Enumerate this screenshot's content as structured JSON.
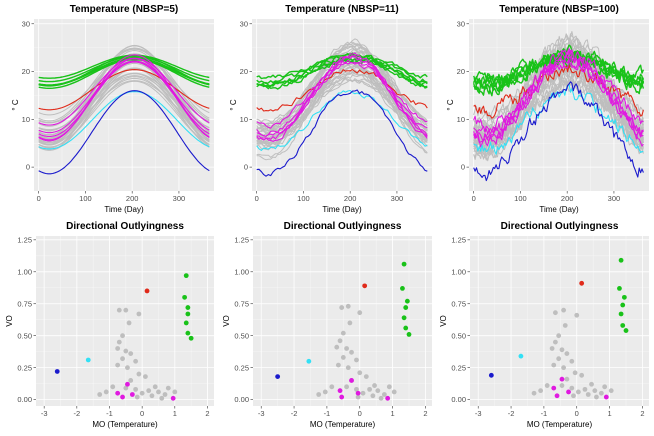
{
  "colors": {
    "panel_bg": "#ebebeb",
    "grid_major": "#ffffff",
    "grey_curve": "#bebebe",
    "green": "#19c219",
    "red": "#e02a1a",
    "magenta": "#e01ae0",
    "cyan": "#33e0f5",
    "blue": "#1a1acc"
  },
  "chart_data": [
    {
      "type": "line",
      "title": "Temperature (NBSP=5)",
      "xlabel": "Time (Day)",
      "ylabel": "° C",
      "xlim": [
        -10,
        375
      ],
      "ylim": [
        -5,
        31
      ],
      "xticks": [
        0,
        100,
        200,
        300
      ],
      "yticks": [
        0,
        10,
        20,
        30
      ],
      "noise": 0,
      "grid": true,
      "series": [
        {
          "color": "green",
          "mean": 20,
          "amp": 2.8
        },
        {
          "color": "green",
          "mean": 20.5,
          "amp": 2.6
        },
        {
          "color": "green",
          "mean": 19.5,
          "amp": 3.0
        },
        {
          "color": "green",
          "mean": 21,
          "amp": 2.4
        },
        {
          "color": "green",
          "mean": 20.2,
          "amp": 3.2
        },
        {
          "color": "green",
          "mean": 19.8,
          "amp": 2.7
        },
        {
          "color": "red",
          "mean": 16.2,
          "amp": 4.2
        },
        {
          "color": "magenta",
          "mean": 14.7,
          "amp": 7.5
        },
        {
          "color": "magenta",
          "mean": 14.2,
          "amp": 8.5
        },
        {
          "color": "magenta",
          "mean": 14.2,
          "amp": 7.8
        },
        {
          "color": "magenta",
          "mean": 15.8,
          "amp": 7
        },
        {
          "color": "magenta",
          "mean": 14.5,
          "amp": 9
        },
        {
          "color": "cyan",
          "mean": 9.8,
          "amp": 6
        },
        {
          "color": "blue",
          "mean": 7.3,
          "amp": 8.7
        }
      ]
    },
    {
      "type": "line",
      "title": "Temperature (NBSP=11)",
      "xlabel": "Time (Day)",
      "ylabel": "° C",
      "xlim": [
        -10,
        375
      ],
      "ylim": [
        -5,
        31
      ],
      "xticks": [
        0,
        100,
        200,
        300
      ],
      "yticks": [
        0,
        10,
        20,
        30
      ],
      "noise": 0.6,
      "grid": true,
      "series": [
        {
          "color": "green",
          "mean": 20,
          "amp": 2.8
        },
        {
          "color": "green",
          "mean": 20.5,
          "amp": 2.6
        },
        {
          "color": "green",
          "mean": 19.5,
          "amp": 3.0
        },
        {
          "color": "green",
          "mean": 21,
          "amp": 2.4
        },
        {
          "color": "green",
          "mean": 20.2,
          "amp": 3.2
        },
        {
          "color": "green",
          "mean": 19.8,
          "amp": 2.7
        },
        {
          "color": "red",
          "mean": 16.2,
          "amp": 4.2
        },
        {
          "color": "magenta",
          "mean": 14.7,
          "amp": 7.5
        },
        {
          "color": "magenta",
          "mean": 14.2,
          "amp": 8.5
        },
        {
          "color": "magenta",
          "mean": 14.2,
          "amp": 7.8
        },
        {
          "color": "magenta",
          "mean": 15.8,
          "amp": 7
        },
        {
          "color": "magenta",
          "mean": 14.5,
          "amp": 9
        },
        {
          "color": "cyan",
          "mean": 9.8,
          "amp": 6
        },
        {
          "color": "blue",
          "mean": 7.3,
          "amp": 8.7
        }
      ]
    },
    {
      "type": "line",
      "title": "Temperature (NBSP=100)",
      "xlabel": "Time (Day)",
      "ylabel": "° C",
      "xlim": [
        -10,
        375
      ],
      "ylim": [
        -5,
        31
      ],
      "xticks": [
        0,
        100,
        200,
        300
      ],
      "yticks": [
        0,
        10,
        20,
        30
      ],
      "noise": 1.6,
      "grid": true,
      "series": [
        {
          "color": "green",
          "mean": 20,
          "amp": 2.8
        },
        {
          "color": "green",
          "mean": 20.5,
          "amp": 2.6
        },
        {
          "color": "green",
          "mean": 19.5,
          "amp": 3.0
        },
        {
          "color": "green",
          "mean": 21,
          "amp": 2.4
        },
        {
          "color": "green",
          "mean": 20.2,
          "amp": 3.2
        },
        {
          "color": "green",
          "mean": 19.8,
          "amp": 2.7
        },
        {
          "color": "red",
          "mean": 16.2,
          "amp": 4.2
        },
        {
          "color": "magenta",
          "mean": 14.7,
          "amp": 7.5
        },
        {
          "color": "magenta",
          "mean": 14.2,
          "amp": 8.5
        },
        {
          "color": "magenta",
          "mean": 14.2,
          "amp": 7.8
        },
        {
          "color": "magenta",
          "mean": 15.8,
          "amp": 7
        },
        {
          "color": "magenta",
          "mean": 14.5,
          "amp": 9
        },
        {
          "color": "cyan",
          "mean": 9.8,
          "amp": 6
        },
        {
          "color": "blue",
          "mean": 7.3,
          "amp": 8.7
        }
      ]
    },
    {
      "type": "scatter",
      "title": "Directional Outlyingness",
      "xlabel": "MO (Temperature)",
      "ylabel": "VO",
      "xlim": [
        -3.25,
        2.2
      ],
      "ylim": [
        -0.05,
        1.28
      ],
      "xticks": [
        -3,
        -2,
        -1,
        0,
        1,
        2
      ],
      "yticks": [
        0.0,
        0.25,
        0.5,
        0.75,
        1.0,
        1.25
      ],
      "ytick_labels": [
        "0.00",
        "0.25",
        "0.50",
        "0.75",
        "1.00",
        "1.25"
      ],
      "grid": true,
      "points": [
        {
          "x": -2.6,
          "y": 0.22,
          "color": "blue"
        },
        {
          "x": -1.65,
          "y": 0.31,
          "color": "cyan"
        },
        {
          "x": 0.15,
          "y": 0.85,
          "color": "red"
        },
        {
          "x": 1.35,
          "y": 0.97,
          "color": "green"
        },
        {
          "x": 1.3,
          "y": 0.8,
          "color": "green"
        },
        {
          "x": 1.4,
          "y": 0.72,
          "color": "green"
        },
        {
          "x": 1.4,
          "y": 0.67,
          "color": "green"
        },
        {
          "x": 1.35,
          "y": 0.6,
          "color": "green"
        },
        {
          "x": 1.4,
          "y": 0.52,
          "color": "green"
        },
        {
          "x": 1.5,
          "y": 0.48,
          "color": "green"
        },
        {
          "x": -0.75,
          "y": 0.05,
          "color": "magenta"
        },
        {
          "x": -0.45,
          "y": 0.12,
          "color": "magenta"
        },
        {
          "x": -0.3,
          "y": 0.04,
          "color": "magenta"
        },
        {
          "x": -0.6,
          "y": 0.02,
          "color": "magenta"
        },
        {
          "x": 0.95,
          "y": 0.01,
          "color": "magenta"
        },
        {
          "x": -0.7,
          "y": 0.7,
          "color": "grey"
        },
        {
          "x": -0.5,
          "y": 0.7,
          "color": "grey"
        },
        {
          "x": -0.1,
          "y": 0.67,
          "color": "grey"
        },
        {
          "x": -0.4,
          "y": 0.6,
          "color": "grey"
        },
        {
          "x": -0.6,
          "y": 0.5,
          "color": "grey"
        },
        {
          "x": -0.7,
          "y": 0.45,
          "color": "grey"
        },
        {
          "x": -0.75,
          "y": 0.4,
          "color": "grey"
        },
        {
          "x": -0.5,
          "y": 0.38,
          "color": "grey"
        },
        {
          "x": -0.35,
          "y": 0.36,
          "color": "grey"
        },
        {
          "x": -0.6,
          "y": 0.32,
          "color": "grey"
        },
        {
          "x": -0.2,
          "y": 0.3,
          "color": "grey"
        },
        {
          "x": -0.75,
          "y": 0.27,
          "color": "grey"
        },
        {
          "x": -0.45,
          "y": 0.25,
          "color": "grey"
        },
        {
          "x": -0.1,
          "y": 0.2,
          "color": "grey"
        },
        {
          "x": 0.1,
          "y": 0.18,
          "color": "grey"
        },
        {
          "x": -0.35,
          "y": 0.15,
          "color": "grey"
        },
        {
          "x": -0.9,
          "y": 0.1,
          "color": "grey"
        },
        {
          "x": -1.1,
          "y": 0.06,
          "color": "grey"
        },
        {
          "x": -1.3,
          "y": 0.04,
          "color": "grey"
        },
        {
          "x": -0.2,
          "y": 0.08,
          "color": "grey"
        },
        {
          "x": 0.0,
          "y": 0.05,
          "color": "grey"
        },
        {
          "x": 0.2,
          "y": 0.07,
          "color": "grey"
        },
        {
          "x": 0.3,
          "y": 0.03,
          "color": "grey"
        },
        {
          "x": 0.5,
          "y": 0.06,
          "color": "grey"
        },
        {
          "x": 0.7,
          "y": 0.04,
          "color": "grey"
        },
        {
          "x": 0.8,
          "y": 0.09,
          "color": "grey"
        },
        {
          "x": 1.0,
          "y": 0.06,
          "color": "grey"
        },
        {
          "x": 0.4,
          "y": 0.1,
          "color": "grey"
        },
        {
          "x": -0.15,
          "y": 0.02,
          "color": "grey"
        },
        {
          "x": 0.6,
          "y": 0.01,
          "color": "grey"
        },
        {
          "x": -0.5,
          "y": 0.09,
          "color": "grey"
        }
      ]
    },
    {
      "type": "scatter",
      "title": "Directional Outlyingness",
      "xlabel": "MO (Temperature)",
      "ylabel": "VO",
      "xlim": [
        -3.25,
        2.2
      ],
      "ylim": [
        -0.05,
        1.28
      ],
      "xticks": [
        -3,
        -2,
        -1,
        0,
        1,
        2
      ],
      "yticks": [
        0.0,
        0.25,
        0.5,
        0.75,
        1.0,
        1.25
      ],
      "ytick_labels": [
        "0.00",
        "0.25",
        "0.50",
        "0.75",
        "1.00",
        "1.25"
      ],
      "grid": true,
      "points": [
        {
          "x": -2.5,
          "y": 0.18,
          "color": "blue"
        },
        {
          "x": -1.55,
          "y": 0.3,
          "color": "cyan"
        },
        {
          "x": 0.15,
          "y": 0.89,
          "color": "red"
        },
        {
          "x": 1.35,
          "y": 1.06,
          "color": "green"
        },
        {
          "x": 1.3,
          "y": 0.87,
          "color": "green"
        },
        {
          "x": 1.45,
          "y": 0.77,
          "color": "green"
        },
        {
          "x": 1.4,
          "y": 0.72,
          "color": "green"
        },
        {
          "x": 1.35,
          "y": 0.64,
          "color": "green"
        },
        {
          "x": 1.4,
          "y": 0.56,
          "color": "green"
        },
        {
          "x": 1.5,
          "y": 0.51,
          "color": "green"
        },
        {
          "x": -0.6,
          "y": 0.07,
          "color": "magenta"
        },
        {
          "x": -0.25,
          "y": 0.15,
          "color": "magenta"
        },
        {
          "x": -0.05,
          "y": 0.05,
          "color": "magenta"
        },
        {
          "x": -0.55,
          "y": 0.02,
          "color": "magenta"
        },
        {
          "x": 0.85,
          "y": 0.01,
          "color": "magenta"
        },
        {
          "x": -0.55,
          "y": 0.72,
          "color": "grey"
        },
        {
          "x": -0.35,
          "y": 0.73,
          "color": "grey"
        },
        {
          "x": 0.0,
          "y": 0.68,
          "color": "grey"
        },
        {
          "x": -0.3,
          "y": 0.6,
          "color": "grey"
        },
        {
          "x": -0.5,
          "y": 0.52,
          "color": "grey"
        },
        {
          "x": -0.6,
          "y": 0.46,
          "color": "grey"
        },
        {
          "x": -0.7,
          "y": 0.41,
          "color": "grey"
        },
        {
          "x": -0.4,
          "y": 0.4,
          "color": "grey"
        },
        {
          "x": -0.25,
          "y": 0.37,
          "color": "grey"
        },
        {
          "x": -0.5,
          "y": 0.33,
          "color": "grey"
        },
        {
          "x": -0.1,
          "y": 0.31,
          "color": "grey"
        },
        {
          "x": -0.65,
          "y": 0.27,
          "color": "grey"
        },
        {
          "x": -0.35,
          "y": 0.25,
          "color": "grey"
        },
        {
          "x": 0.0,
          "y": 0.21,
          "color": "grey"
        },
        {
          "x": 0.2,
          "y": 0.18,
          "color": "grey"
        },
        {
          "x": -0.25,
          "y": 0.15,
          "color": "grey"
        },
        {
          "x": -0.85,
          "y": 0.1,
          "color": "grey"
        },
        {
          "x": -1.05,
          "y": 0.06,
          "color": "grey"
        },
        {
          "x": -1.25,
          "y": 0.04,
          "color": "grey"
        },
        {
          "x": -0.1,
          "y": 0.08,
          "color": "grey"
        },
        {
          "x": 0.1,
          "y": 0.05,
          "color": "grey"
        },
        {
          "x": 0.3,
          "y": 0.08,
          "color": "grey"
        },
        {
          "x": 0.4,
          "y": 0.03,
          "color": "grey"
        },
        {
          "x": 0.55,
          "y": 0.07,
          "color": "grey"
        },
        {
          "x": 0.75,
          "y": 0.04,
          "color": "grey"
        },
        {
          "x": 0.9,
          "y": 0.1,
          "color": "grey"
        },
        {
          "x": 1.05,
          "y": 0.06,
          "color": "grey"
        },
        {
          "x": 0.45,
          "y": 0.11,
          "color": "grey"
        },
        {
          "x": -0.05,
          "y": 0.02,
          "color": "grey"
        },
        {
          "x": 0.65,
          "y": 0.01,
          "color": "grey"
        },
        {
          "x": -0.4,
          "y": 0.1,
          "color": "grey"
        }
      ]
    },
    {
      "type": "scatter",
      "title": "Directional Outlyingness",
      "xlabel": "MO (Temperature)",
      "ylabel": "VO",
      "xlim": [
        -3.25,
        2.2
      ],
      "ylim": [
        -0.05,
        1.28
      ],
      "xticks": [
        -3,
        -2,
        -1,
        0,
        1,
        2
      ],
      "yticks": [
        0.0,
        0.25,
        0.5,
        0.75,
        1.0,
        1.25
      ],
      "ytick_labels": [
        "0.00",
        "0.25",
        "0.50",
        "0.75",
        "1.00",
        "1.25"
      ],
      "grid": true,
      "points": [
        {
          "x": -2.6,
          "y": 0.19,
          "color": "blue"
        },
        {
          "x": -1.7,
          "y": 0.34,
          "color": "cyan"
        },
        {
          "x": 0.15,
          "y": 0.91,
          "color": "red"
        },
        {
          "x": 1.35,
          "y": 1.09,
          "color": "green"
        },
        {
          "x": 1.3,
          "y": 0.87,
          "color": "green"
        },
        {
          "x": 1.45,
          "y": 0.8,
          "color": "green"
        },
        {
          "x": 1.4,
          "y": 0.74,
          "color": "green"
        },
        {
          "x": 1.35,
          "y": 0.67,
          "color": "green"
        },
        {
          "x": 1.4,
          "y": 0.58,
          "color": "green"
        },
        {
          "x": 1.5,
          "y": 0.54,
          "color": "green"
        },
        {
          "x": -0.7,
          "y": 0.09,
          "color": "magenta"
        },
        {
          "x": -0.45,
          "y": 0.16,
          "color": "magenta"
        },
        {
          "x": -0.25,
          "y": 0.06,
          "color": "magenta"
        },
        {
          "x": -0.6,
          "y": 0.03,
          "color": "magenta"
        },
        {
          "x": 0.9,
          "y": 0.02,
          "color": "magenta"
        },
        {
          "x": -0.65,
          "y": 0.68,
          "color": "grey"
        },
        {
          "x": -0.4,
          "y": 0.7,
          "color": "grey"
        },
        {
          "x": 0.0,
          "y": 0.66,
          "color": "grey"
        },
        {
          "x": -0.35,
          "y": 0.58,
          "color": "grey"
        },
        {
          "x": -0.55,
          "y": 0.5,
          "color": "grey"
        },
        {
          "x": -0.65,
          "y": 0.45,
          "color": "grey"
        },
        {
          "x": -0.75,
          "y": 0.4,
          "color": "grey"
        },
        {
          "x": -0.45,
          "y": 0.39,
          "color": "grey"
        },
        {
          "x": -0.3,
          "y": 0.36,
          "color": "grey"
        },
        {
          "x": -0.55,
          "y": 0.32,
          "color": "grey"
        },
        {
          "x": -0.15,
          "y": 0.3,
          "color": "grey"
        },
        {
          "x": -0.7,
          "y": 0.27,
          "color": "grey"
        },
        {
          "x": -0.4,
          "y": 0.25,
          "color": "grey"
        },
        {
          "x": -0.05,
          "y": 0.21,
          "color": "grey"
        },
        {
          "x": 0.15,
          "y": 0.19,
          "color": "grey"
        },
        {
          "x": -0.3,
          "y": 0.16,
          "color": "grey"
        },
        {
          "x": -0.9,
          "y": 0.11,
          "color": "grey"
        },
        {
          "x": -1.1,
          "y": 0.07,
          "color": "grey"
        },
        {
          "x": -1.3,
          "y": 0.05,
          "color": "grey"
        },
        {
          "x": -0.15,
          "y": 0.09,
          "color": "grey"
        },
        {
          "x": 0.05,
          "y": 0.06,
          "color": "grey"
        },
        {
          "x": 0.25,
          "y": 0.08,
          "color": "grey"
        },
        {
          "x": 0.35,
          "y": 0.04,
          "color": "grey"
        },
        {
          "x": 0.55,
          "y": 0.07,
          "color": "grey"
        },
        {
          "x": 0.75,
          "y": 0.05,
          "color": "grey"
        },
        {
          "x": 0.85,
          "y": 0.1,
          "color": "grey"
        },
        {
          "x": 1.05,
          "y": 0.07,
          "color": "grey"
        },
        {
          "x": 0.45,
          "y": 0.12,
          "color": "grey"
        },
        {
          "x": -0.1,
          "y": 0.03,
          "color": "grey"
        },
        {
          "x": 0.6,
          "y": 0.02,
          "color": "grey"
        },
        {
          "x": -0.45,
          "y": 0.11,
          "color": "grey"
        }
      ]
    }
  ]
}
